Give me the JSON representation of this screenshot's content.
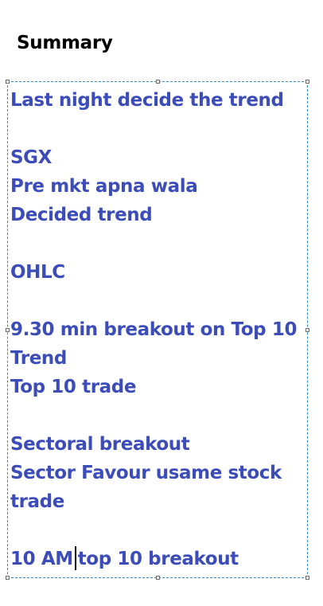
{
  "heading": "Summary",
  "lines": {
    "l1": "Last night decide the trend",
    "l2": "SGX",
    "l3": "Pre mkt apna wala",
    "l4": "Decided trend",
    "l5": "OHLC",
    "l6": "9.30 min breakout on Top 10",
    "l7": "Trend",
    "l8": "Top 10 trade",
    "l9": "Sectoral breakout",
    "l10": "Sector Favour usame stock",
    "l11": "trade",
    "l12a": "10 AM",
    "l12b": "top 10 breakout"
  },
  "colors": {
    "text": "#3c4cb8",
    "heading": "#000000",
    "selection_border": "#2f86c9"
  }
}
